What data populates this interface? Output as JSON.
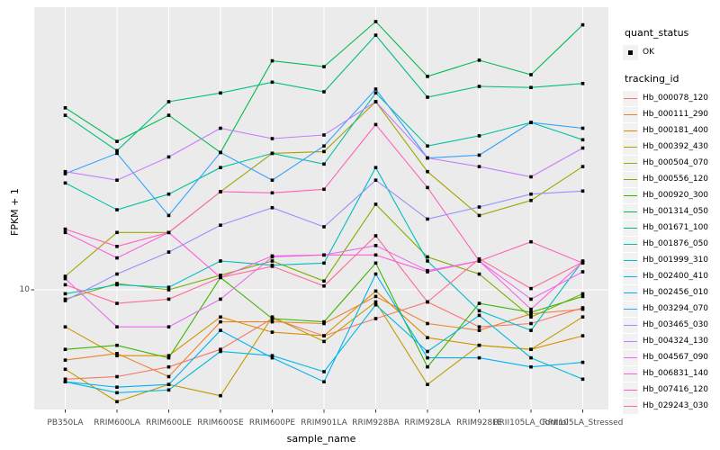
{
  "y_axis": {
    "title": "FPKM + 1",
    "tick_labels": [
      "10"
    ]
  },
  "x_axis": {
    "title": "sample_name",
    "categories": [
      "PB350LA",
      "RRIM600LA",
      "RRIM600LE",
      "RRIM600SE",
      "RRIM600PE",
      "RRIM901LA",
      "RRIM928BA",
      "RRIM928LA",
      "RRIM928LE",
      "RRII105LA_Control",
      "RRII105LA_Stressed"
    ]
  },
  "legend": {
    "quant_status": {
      "title": "quant_status",
      "items": [
        {
          "label": "OK",
          "symbol": "black-square-point"
        }
      ]
    },
    "tracking_id": {
      "title": "tracking_id"
    }
  },
  "style": {
    "panel_bg": "#EBEBEB",
    "grid_color": "#FFFFFF",
    "legend_key_bg": "#F2F2F2",
    "point_color": "#000000",
    "axis_text_color": "#4D4D4D",
    "tick_mark_color": "#333333"
  },
  "chart_data": {
    "type": "line",
    "title": "",
    "xlabel": "sample_name",
    "ylabel": "FPKM + 1",
    "yscale": "log10",
    "ylim": [
      3.9,
      90
    ],
    "ytick_values": [
      10
    ],
    "grid": true,
    "legend_position": "right",
    "point_shape": "small black square (quant_status = OK)",
    "categories": [
      "PB350LA",
      "RRIM600LA",
      "RRIM600LE",
      "RRIM600SE",
      "RRIM600PE",
      "RRIM901LA",
      "RRIM928BA",
      "RRIM928LA",
      "RRIM928LE",
      "RRII105LA_Control",
      "RRII105LA_Stressed"
    ],
    "series": [
      {
        "name": "Hb_000078_120",
        "color": "#F8766D",
        "values": [
          5.0,
          5.1,
          5.5,
          6.3,
          8.0,
          7.0,
          8.0,
          9.1,
          7.5,
          7.7,
          8.7
        ]
      },
      {
        "name": "Hb_000111_290",
        "color": "#EA8331",
        "values": [
          5.8,
          6.1,
          5.1,
          7.8,
          7.8,
          7.7,
          9.5,
          7.7,
          7.3,
          8.3,
          8.6
        ]
      },
      {
        "name": "Hb_000181_400",
        "color": "#D89000",
        "values": [
          7.5,
          6.0,
          6.0,
          8.1,
          7.2,
          7.0,
          9.9,
          6.9,
          6.5,
          6.3,
          7.0
        ]
      },
      {
        "name": "Hb_000392_430",
        "color": "#C09B00",
        "values": [
          5.4,
          4.2,
          4.8,
          4.4,
          8.1,
          6.7,
          9.1,
          4.8,
          6.5,
          6.3,
          8.1
        ]
      },
      {
        "name": "Hb_000504_070",
        "color": "#A3A500",
        "values": [
          11.1,
          15.6,
          15.6,
          21.4,
          28.8,
          29.2,
          43.0,
          25.0,
          17.8,
          20.0,
          26.0
        ]
      },
      {
        "name": "Hb_000556_120",
        "color": "#7CAE00",
        "values": [
          9.3,
          10.5,
          10.0,
          11.2,
          12.5,
          10.7,
          19.4,
          12.9,
          11.3,
          8.1,
          9.7
        ]
      },
      {
        "name": "Hb_000920_300",
        "color": "#39B600",
        "values": [
          6.3,
          6.5,
          5.9,
          11.0,
          8.0,
          7.8,
          12.3,
          5.5,
          9.0,
          8.4,
          9.5
        ]
      },
      {
        "name": "Hb_001314_050",
        "color": "#00BB4E",
        "values": [
          41.0,
          31.6,
          38.7,
          29.0,
          59.0,
          56.4,
          80.0,
          52.3,
          59.3,
          53.0,
          78.0
        ]
      },
      {
        "name": "Hb_001671_100",
        "color": "#00BF7D",
        "values": [
          38.7,
          29.4,
          43.0,
          46.0,
          50.0,
          46.4,
          72.0,
          44.5,
          48.4,
          48.0,
          49.5
        ]
      },
      {
        "name": "Hb_001876_050",
        "color": "#00C1A3",
        "values": [
          22.9,
          18.6,
          21.0,
          25.8,
          28.8,
          26.5,
          46.0,
          30.5,
          33.0,
          36.6,
          32.0
        ]
      },
      {
        "name": "Hb_001999_310",
        "color": "#00BFC4",
        "values": [
          9.7,
          10.4,
          10.2,
          12.5,
          12.1,
          12.3,
          25.8,
          12.5,
          8.5,
          7.3,
          12.5
        ]
      },
      {
        "name": "Hb_002400_410",
        "color": "#00BAE0",
        "values": [
          4.9,
          4.5,
          4.6,
          6.2,
          6.0,
          5.3,
          8.9,
          6.2,
          8.2,
          5.9,
          5.0
        ]
      },
      {
        "name": "Hb_002456_010",
        "color": "#00B0F6",
        "values": [
          4.9,
          4.7,
          4.8,
          7.3,
          5.9,
          4.9,
          11.3,
          5.9,
          5.9,
          5.5,
          5.7
        ]
      },
      {
        "name": "Hb_003294_070",
        "color": "#35A2FF",
        "values": [
          24.6,
          28.8,
          17.8,
          29.0,
          23.4,
          30.5,
          47.4,
          27.8,
          28.4,
          36.6,
          35.0
        ]
      },
      {
        "name": "Hb_003465_030",
        "color": "#9590FF",
        "values": [
          9.2,
          11.3,
          13.4,
          16.5,
          18.9,
          16.3,
          23.4,
          17.3,
          19.0,
          21.0,
          21.5
        ]
      },
      {
        "name": "Hb_004324_130",
        "color": "#C77CFF",
        "values": [
          25.0,
          23.4,
          28.0,
          35.0,
          32.3,
          33.2,
          43.0,
          27.8,
          26.0,
          24.0,
          30.0
        ]
      },
      {
        "name": "Hb_004567_090",
        "color": "#E76BF3",
        "values": [
          10.9,
          7.5,
          7.5,
          9.3,
          12.9,
          13.1,
          14.1,
          11.6,
          12.5,
          9.3,
          11.5
        ]
      },
      {
        "name": "Hb_006831_140",
        "color": "#FA62DB",
        "values": [
          15.6,
          12.8,
          15.6,
          11.0,
          13.0,
          13.1,
          13.1,
          11.5,
          12.5,
          8.6,
          12.4
        ]
      },
      {
        "name": "Hb_007416_120",
        "color": "#FF62BC",
        "values": [
          16.0,
          14.0,
          15.6,
          21.4,
          21.2,
          21.8,
          36.0,
          22.1,
          12.5,
          14.5,
          12.3
        ]
      },
      {
        "name": "Hb_029243_030",
        "color": "#FF6A98",
        "values": [
          10.4,
          9.0,
          9.3,
          11.0,
          12.0,
          10.3,
          15.2,
          9.1,
          12.7,
          10.1,
          12.4
        ]
      }
    ]
  }
}
